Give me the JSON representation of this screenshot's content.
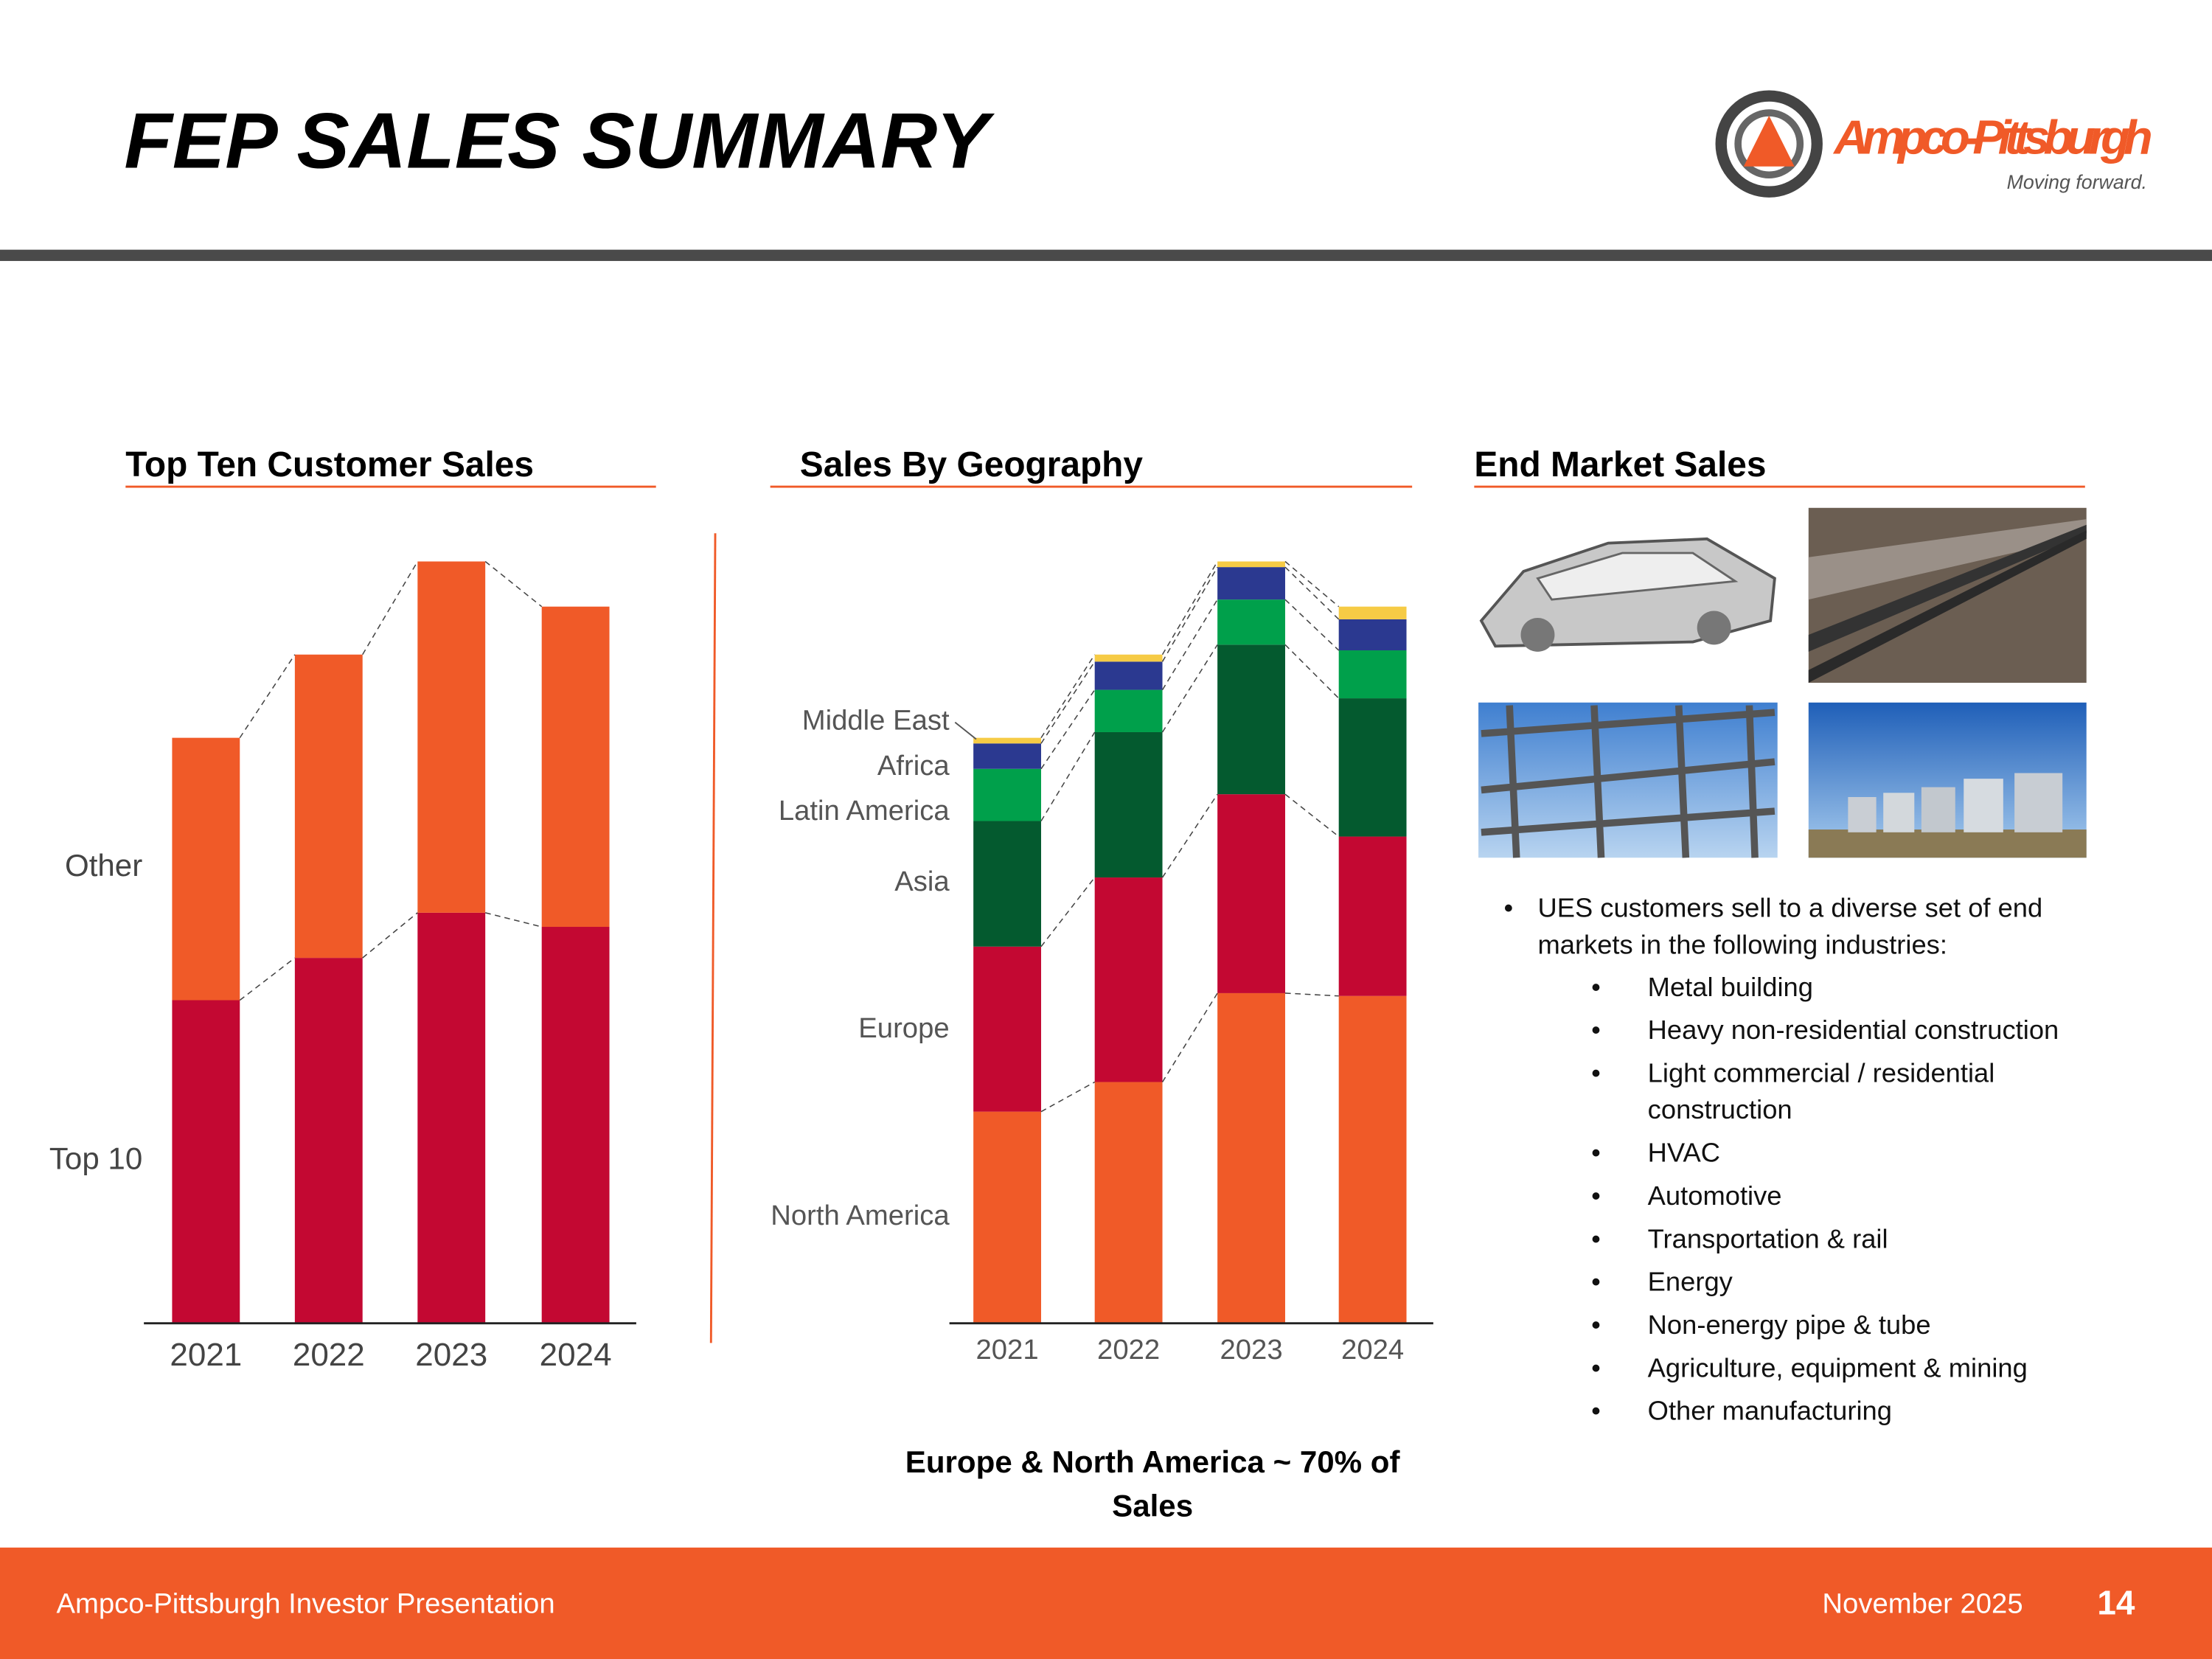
{
  "header": {
    "title": "FEP SALES SUMMARY",
    "logo_name": "Ampco-Pittsburgh",
    "logo_tagline": "Moving forward."
  },
  "sections": [
    "Top Ten Customer Sales",
    "Sales By Geography",
    "End Market Sales"
  ],
  "chart_data": [
    {
      "type": "bar",
      "stacked": true,
      "categories": [
        "2021",
        "2022",
        "2023",
        "2024"
      ],
      "ylim": [
        0,
        540
      ],
      "series": [
        {
          "name": "Top 10",
          "color": "#c30832",
          "values": [
            229,
            259,
            291,
            281
          ]
        },
        {
          "name": "Other",
          "color": "#f05a28",
          "values": [
            186,
            215,
            249,
            227
          ]
        }
      ]
    },
    {
      "type": "bar",
      "stacked": true,
      "categories": [
        "2021",
        "2022",
        "2023",
        "2024"
      ],
      "ylim": [
        0,
        540
      ],
      "series": [
        {
          "name": "North America",
          "color": "#f05a28",
          "values": [
            150,
            171,
            234,
            232
          ]
        },
        {
          "name": "Europe",
          "color": "#c30832",
          "values": [
            117,
            145,
            141,
            113
          ]
        },
        {
          "name": "Asia",
          "color": "#045a2f",
          "values": [
            89,
            103,
            106,
            98
          ]
        },
        {
          "name": "Latin America",
          "color": "#00a04b",
          "values": [
            37,
            30,
            32,
            34
          ]
        },
        {
          "name": "Africa",
          "color": "#2b3990",
          "values": [
            18,
            20,
            23,
            22
          ]
        },
        {
          "name": "Middle East",
          "color": "#f6cb45",
          "values": [
            4,
            5,
            4,
            9
          ]
        }
      ]
    }
  ],
  "end_market": {
    "intro": [
      "UES customers sell to a diverse set of end",
      "markets in the following industries:"
    ],
    "items": [
      [
        "Metal building"
      ],
      [
        "Heavy non-residential construction"
      ],
      [
        "Light commercial / residential",
        "construction"
      ],
      [
        "HVAC"
      ],
      [
        "Automotive"
      ],
      [
        "Transportation & rail"
      ],
      [
        "Energy"
      ],
      [
        "Non-energy pipe & tube"
      ],
      [
        "Agriculture, equipment & mining"
      ],
      [
        "Other manufacturing"
      ]
    ]
  },
  "note": [
    "Europe & North America ~ 70% of",
    "Sales"
  ],
  "footer": {
    "left": "Ampco-Pittsburgh Investor Presentation",
    "date": "November 2025",
    "page": "14"
  }
}
